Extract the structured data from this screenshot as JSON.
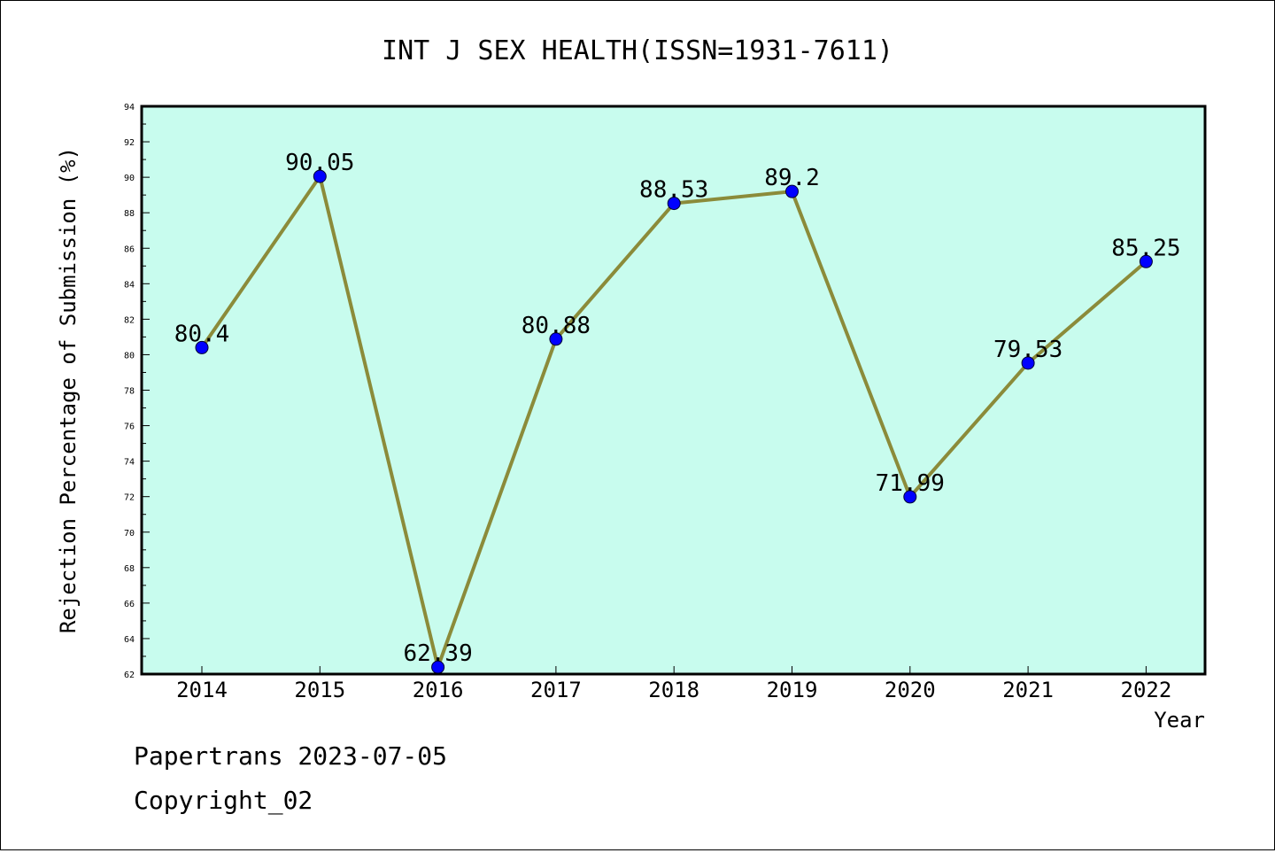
{
  "footer": {
    "line1": "Papertrans 2023-07-05",
    "line2": "Copyright_02"
  },
  "colors": {
    "plot_bg": "#c8fcee",
    "line": "#8b8b3a",
    "marker": "#0000ff",
    "axis": "#000000"
  },
  "chart_data": {
    "type": "line",
    "title": "INT J SEX HEALTH(ISSN=1931-7611)",
    "xlabel": "Year",
    "ylabel": "Rejection Percentage of Submission (%)",
    "categories": [
      "2014",
      "2015",
      "2016",
      "2017",
      "2018",
      "2019",
      "2020",
      "2021",
      "2022"
    ],
    "series": [
      {
        "values": [
          80.4,
          90.05,
          62.39,
          80.88,
          88.53,
          89.2,
          71.99,
          79.53,
          85.25
        ],
        "labels": [
          "80.4",
          "90.05",
          "62.39",
          "80.88",
          "88.53",
          "89.2",
          "71.99",
          "79.53",
          "85.25"
        ]
      }
    ],
    "ylim": [
      62,
      94
    ],
    "yticks": [
      62,
      64,
      66,
      68,
      70,
      72,
      74,
      76,
      78,
      80,
      82,
      84,
      86,
      88,
      90,
      92,
      94
    ],
    "grid": false
  }
}
